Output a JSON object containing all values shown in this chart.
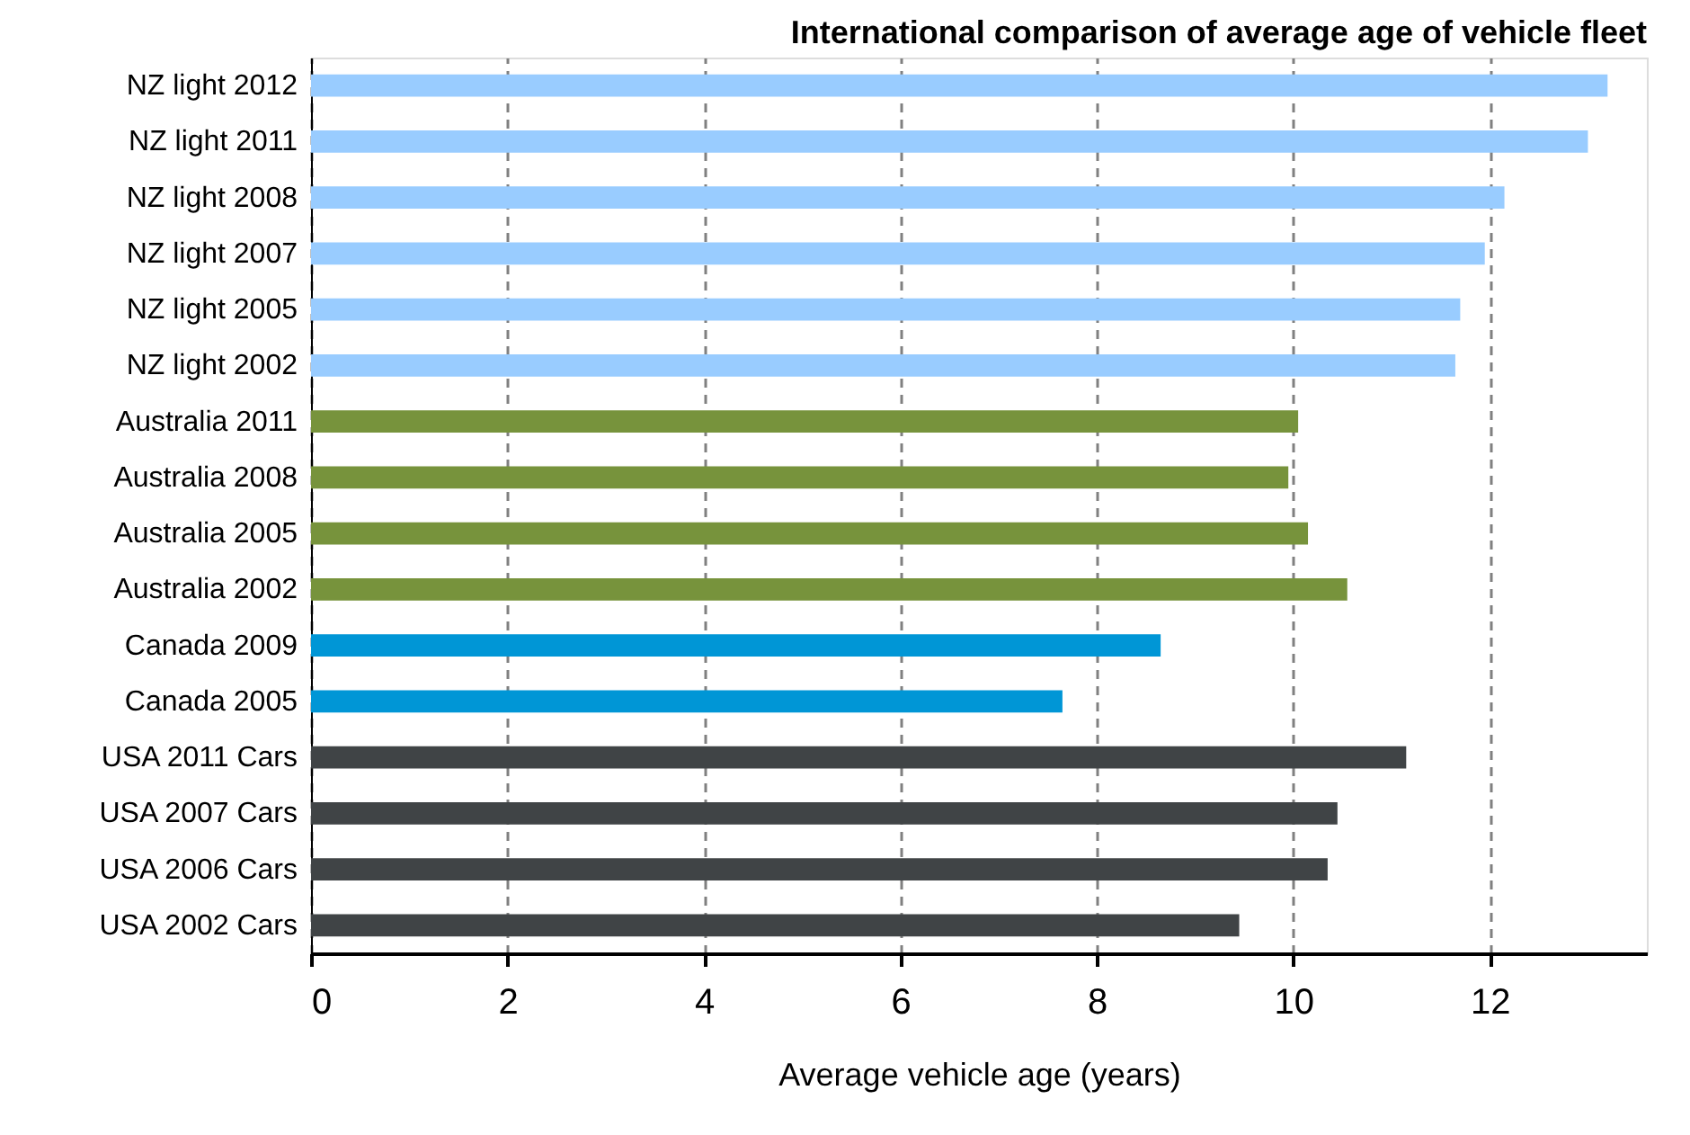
{
  "chart_data": {
    "type": "bar",
    "orientation": "horizontal",
    "title": "International comparison of average age of vehicle fleet",
    "xlabel": "Average vehicle age (years)",
    "categories": [
      "NZ light 2012",
      "NZ light 2011",
      "NZ light 2008",
      "NZ light 2007",
      "NZ light 2005",
      "NZ light 2002",
      "Australia 2011",
      "Australia 2008",
      "Australia 2005",
      "Australia 2002",
      "Canada 2009",
      "Canada 2005",
      "USA 2011 Cars",
      "USA 2007 Cars",
      "USA 2006 Cars",
      "USA 2002 Cars"
    ],
    "values": [
      13.2,
      13.0,
      12.15,
      11.95,
      11.7,
      11.65,
      10.05,
      9.95,
      10.15,
      10.55,
      8.65,
      7.65,
      11.15,
      10.45,
      10.35,
      9.45
    ],
    "colors": [
      "#99ccff",
      "#99ccff",
      "#99ccff",
      "#99ccff",
      "#99ccff",
      "#99ccff",
      "#77933c",
      "#77933c",
      "#77933c",
      "#77933c",
      "#0096d6",
      "#0096d6",
      "#404446",
      "#404446",
      "#404446",
      "#404446"
    ],
    "xlim": [
      0,
      13.6
    ],
    "xticks": [
      0,
      2,
      4,
      6,
      8,
      10,
      12
    ],
    "grid": "x"
  }
}
